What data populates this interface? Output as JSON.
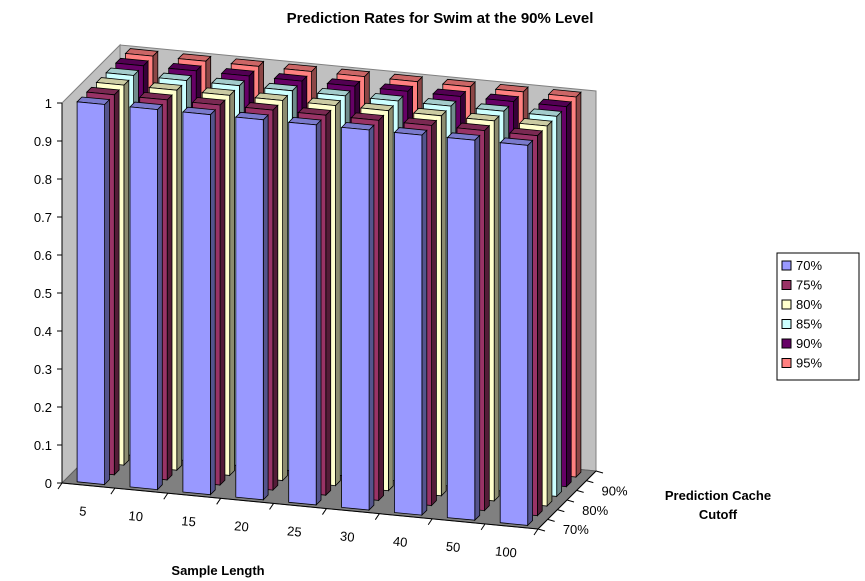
{
  "chart_data": {
    "type": "bar",
    "subtype": "3d-column",
    "title": "Prediction Rates for Swim at the 90% Level",
    "xlabel": "Sample Length",
    "zlabel": "Prediction Cache Cutoff",
    "ylim": [
      0,
      1
    ],
    "yticks": [
      "0",
      "0.1",
      "0.2",
      "0.3",
      "0.4",
      "0.5",
      "0.6",
      "0.7",
      "0.8",
      "0.9",
      "1"
    ],
    "categories": [
      "5",
      "10",
      "15",
      "20",
      "25",
      "30",
      "40",
      "50",
      "100"
    ],
    "depth_tick_labels": [
      "70%",
      "80%",
      "90%"
    ],
    "legend_position": "right",
    "series": [
      {
        "name": "70%",
        "color": "#9999ff",
        "values": [
          1,
          1,
          1,
          1,
          1,
          1,
          1,
          1,
          1
        ]
      },
      {
        "name": "75%",
        "color": "#993366",
        "values": [
          1,
          1,
          1,
          1,
          1,
          1,
          1,
          1,
          1
        ]
      },
      {
        "name": "80%",
        "color": "#ffffcc",
        "values": [
          1,
          1,
          1,
          1,
          1,
          1,
          1,
          1,
          1
        ]
      },
      {
        "name": "85%",
        "color": "#ccffff",
        "values": [
          1,
          1,
          1,
          1,
          1,
          1,
          1,
          1,
          1
        ]
      },
      {
        "name": "90%",
        "color": "#660066",
        "values": [
          1,
          1,
          1,
          1,
          1,
          1,
          1,
          1,
          1
        ]
      },
      {
        "name": "95%",
        "color": "#ff8080",
        "values": [
          1,
          1,
          1,
          1,
          1,
          1,
          1,
          1,
          1
        ]
      }
    ]
  }
}
